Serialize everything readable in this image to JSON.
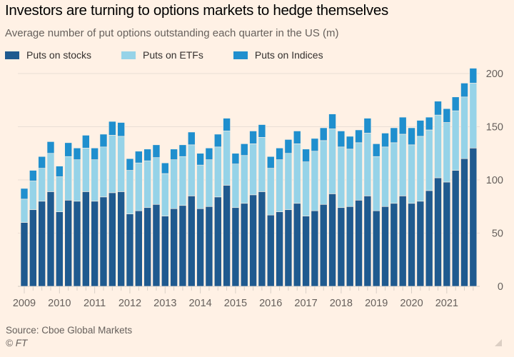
{
  "header": {
    "title": "Investors are turning to options markets to hedge themselves",
    "subtitle": "Average number of put options outstanding each quarter in the US (m)"
  },
  "footer": {
    "source": "Source: Cboe Global Markets",
    "copyright": "© FT"
  },
  "colors": {
    "background": "#FFF1E5",
    "stocks": "#1F5A8F",
    "etfs": "#96D3E8",
    "indices": "#1F8FCE",
    "grid": "#E9DED5",
    "axis_text": "#66605C"
  },
  "chart_data": {
    "type": "bar",
    "stacked": true,
    "title": "Investors are turning to options markets to hedge themselves",
    "subtitle": "Average number of put options outstanding each quarter in the US (m)",
    "xlabel": "",
    "ylabel": "",
    "ylim": [
      0,
      200
    ],
    "yticks": [
      0,
      50,
      100,
      150,
      200
    ],
    "y_axis_side": "right",
    "grid": true,
    "legend_position": "top-left",
    "x_tick_labels": [
      "2009",
      "2010",
      "2011",
      "2012",
      "2013",
      "2014",
      "2015",
      "2016",
      "2017",
      "2018",
      "2019",
      "2020",
      "2021"
    ],
    "categories": [
      "2009 Q1",
      "2009 Q2",
      "2009 Q3",
      "2009 Q4",
      "2010 Q1",
      "2010 Q2",
      "2010 Q3",
      "2010 Q4",
      "2011 Q1",
      "2011 Q2",
      "2011 Q3",
      "2011 Q4",
      "2012 Q1",
      "2012 Q2",
      "2012 Q3",
      "2012 Q4",
      "2013 Q1",
      "2013 Q2",
      "2013 Q3",
      "2013 Q4",
      "2014 Q1",
      "2014 Q2",
      "2014 Q3",
      "2014 Q4",
      "2015 Q1",
      "2015 Q2",
      "2015 Q3",
      "2015 Q4",
      "2016 Q1",
      "2016 Q2",
      "2016 Q3",
      "2016 Q4",
      "2017 Q1",
      "2017 Q2",
      "2017 Q3",
      "2017 Q4",
      "2018 Q1",
      "2018 Q2",
      "2018 Q3",
      "2018 Q4",
      "2019 Q1",
      "2019 Q2",
      "2019 Q3",
      "2019 Q4",
      "2020 Q1",
      "2020 Q2",
      "2020 Q3",
      "2020 Q4",
      "2021 Q1",
      "2021 Q2",
      "2021 Q3",
      "2021 Q4"
    ],
    "series": [
      {
        "name": "Puts on stocks",
        "color": "#1F5A8F",
        "values": [
          60,
          72,
          80,
          89,
          70,
          81,
          80,
          89,
          80,
          84,
          88,
          89,
          68,
          71,
          74,
          77,
          66,
          73,
          76,
          85,
          73,
          75,
          84,
          95,
          74,
          78,
          86,
          89,
          67,
          70,
          72,
          78,
          66,
          71,
          77,
          87,
          74,
          75,
          81,
          85,
          71,
          75,
          78,
          85,
          78,
          80,
          90,
          102,
          98,
          109,
          120,
          130
        ]
      },
      {
        "name": "Puts on ETFs",
        "color": "#96D3E8",
        "values": [
          22,
          27,
          31,
          36,
          33,
          41,
          39,
          41,
          39,
          47,
          54,
          52,
          41,
          45,
          44,
          44,
          40,
          46,
          46,
          48,
          41,
          44,
          47,
          51,
          41,
          45,
          48,
          51,
          44,
          49,
          53,
          56,
          51,
          56,
          60,
          61,
          57,
          54,
          54,
          59,
          51,
          56,
          57,
          58,
          55,
          61,
          57,
          59,
          56,
          56,
          58,
          61
        ]
      },
      {
        "name": "Puts on Indices",
        "color": "#1F8FCE",
        "values": [
          10,
          10,
          11,
          11,
          10,
          13,
          11,
          12,
          11,
          12,
          13,
          13,
          11,
          11,
          11,
          12,
          10,
          10,
          11,
          12,
          11,
          11,
          12,
          12,
          10,
          11,
          12,
          12,
          11,
          11,
          13,
          12,
          12,
          12,
          12,
          14,
          15,
          12,
          12,
          14,
          12,
          13,
          14,
          16,
          16,
          15,
          12,
          13,
          13,
          13,
          13,
          14
        ]
      }
    ]
  }
}
